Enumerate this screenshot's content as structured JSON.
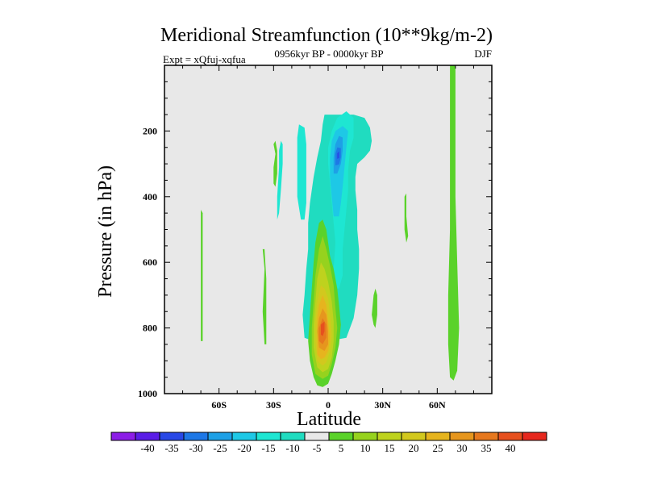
{
  "chart_data": {
    "type": "heatmap",
    "title": "Meridional Streamfunction (10**9kg/m-2)",
    "experiment": "Expt = xQfuj-xqfua",
    "subtitle": "0956kyr BP - 0000kyr BP",
    "season": "DJF",
    "xlabel": "Latitude",
    "ylabel": "Pressure (in hPa)",
    "xlim": [
      -90,
      90
    ],
    "ylim": [
      0,
      1000
    ],
    "x_ticks": [
      {
        "value": -60,
        "label": "60S"
      },
      {
        "value": -30,
        "label": "30S"
      },
      {
        "value": 0,
        "label": "0"
      },
      {
        "value": 30,
        "label": "30N"
      },
      {
        "value": 60,
        "label": "60N"
      }
    ],
    "y_ticks": [
      {
        "value": 200,
        "label": "200"
      },
      {
        "value": 400,
        "label": "400"
      },
      {
        "value": 600,
        "label": "600"
      },
      {
        "value": 800,
        "label": "800"
      },
      {
        "value": 1000,
        "label": "1000"
      }
    ],
    "background_color": "#e8e8e8",
    "colorbar": {
      "colors": [
        "#8c1ee6",
        "#5a1ee6",
        "#2848e6",
        "#1e78e6",
        "#1ea0e6",
        "#1ec8e6",
        "#1ee6d2",
        "#20dcc0",
        "#e8e8e8",
        "#5ad22a",
        "#96d21e",
        "#bed21e",
        "#d2c81e",
        "#e6b41e",
        "#e6961e",
        "#e6781e",
        "#e6501e",
        "#e6281e"
      ],
      "labels": [
        "-40",
        "-35",
        "-30",
        "-25",
        "-20",
        "-15",
        "-10",
        "-5",
        "5",
        "10",
        "15",
        "20",
        "25",
        "30",
        "35",
        "40"
      ]
    },
    "regions": [
      {
        "value": -5,
        "color": "#20dcc0",
        "points": [
          [
            -13,
            830
          ],
          [
            -14,
            760
          ],
          [
            -13,
            700
          ],
          [
            -12,
            620
          ],
          [
            -11,
            560
          ],
          [
            -11,
            480
          ],
          [
            -10,
            420
          ],
          [
            -8,
            340
          ],
          [
            -6,
            280
          ],
          [
            -4,
            230
          ],
          [
            -3,
            180
          ],
          [
            -2,
            150
          ],
          [
            2,
            150
          ],
          [
            8,
            150
          ],
          [
            14,
            150
          ],
          [
            20,
            160
          ],
          [
            23,
            190
          ],
          [
            24,
            230
          ],
          [
            23,
            260
          ],
          [
            20,
            280
          ],
          [
            16,
            300
          ],
          [
            15,
            340
          ],
          [
            15,
            380
          ],
          [
            16,
            440
          ],
          [
            16,
            500
          ],
          [
            17,
            560
          ],
          [
            17,
            620
          ],
          [
            16,
            700
          ],
          [
            14,
            770
          ],
          [
            10,
            830
          ],
          [
            0,
            840
          ],
          [
            -8,
            840
          ]
        ]
      },
      {
        "value": -10,
        "color": "#1ee6d2",
        "points": [
          [
            2,
            680
          ],
          [
            3,
            620
          ],
          [
            4,
            540
          ],
          [
            3,
            480
          ],
          [
            2,
            420
          ],
          [
            1,
            360
          ],
          [
            0,
            300
          ],
          [
            0,
            250
          ],
          [
            2,
            200
          ],
          [
            5,
            160
          ],
          [
            10,
            140
          ],
          [
            14,
            160
          ],
          [
            14,
            220
          ],
          [
            12,
            260
          ],
          [
            11,
            320
          ],
          [
            11,
            380
          ],
          [
            10,
            440
          ],
          [
            9,
            500
          ],
          [
            8,
            560
          ],
          [
            8,
            640
          ],
          [
            6,
            680
          ]
        ]
      },
      {
        "value": -15,
        "color": "#1ec8e6",
        "points": [
          [
            3,
            460
          ],
          [
            2,
            400
          ],
          [
            1,
            340
          ],
          [
            1,
            280
          ],
          [
            2,
            230
          ],
          [
            4,
            200
          ],
          [
            8,
            185
          ],
          [
            11,
            200
          ],
          [
            10,
            250
          ],
          [
            9,
            310
          ],
          [
            8,
            370
          ],
          [
            7,
            420
          ],
          [
            6,
            460
          ]
        ]
      },
      {
        "value": -20,
        "color": "#1ea0e6",
        "points": [
          [
            3,
            330
          ],
          [
            3,
            280
          ],
          [
            4,
            240
          ],
          [
            6,
            215
          ],
          [
            8,
            220
          ],
          [
            8,
            260
          ],
          [
            7,
            300
          ],
          [
            5,
            330
          ]
        ]
      },
      {
        "value": -25,
        "color": "#1e78e6",
        "points": [
          [
            4,
            305
          ],
          [
            4,
            270
          ],
          [
            5,
            250
          ],
          [
            7,
            252
          ],
          [
            7,
            280
          ],
          [
            6,
            302
          ]
        ]
      },
      {
        "value": -30,
        "color": "#2848e6",
        "points": [
          [
            5,
            285
          ],
          [
            5,
            268
          ],
          [
            6,
            262
          ],
          [
            6,
            282
          ]
        ]
      },
      {
        "value": -5,
        "color": "#1ee6d2",
        "points": [
          [
            -17,
            220
          ],
          [
            -16,
            180
          ],
          [
            -13,
            190
          ],
          [
            -12,
            240
          ],
          [
            -12,
            320
          ],
          [
            -12,
            420
          ],
          [
            -13,
            470
          ],
          [
            -15,
            470
          ],
          [
            -17,
            400
          ],
          [
            -17,
            300
          ]
        ]
      },
      {
        "value": -5,
        "color": "#1ee6d2",
        "points": [
          [
            -27,
            310
          ],
          [
            -27,
            260
          ],
          [
            -26,
            230
          ],
          [
            -25,
            240
          ],
          [
            -25,
            300
          ],
          [
            -26,
            380
          ],
          [
            -27,
            450
          ],
          [
            -28,
            470
          ],
          [
            -28,
            400
          ]
        ]
      },
      {
        "value": 5,
        "color": "#5ad22a",
        "points": [
          [
            -8,
            950
          ],
          [
            -10,
            900
          ],
          [
            -11,
            840
          ],
          [
            -10,
            760
          ],
          [
            -9,
            680
          ],
          [
            -8,
            600
          ],
          [
            -7,
            540
          ],
          [
            -5,
            480
          ],
          [
            -3,
            470
          ],
          [
            -1,
            500
          ],
          [
            0,
            540
          ],
          [
            1,
            580
          ],
          [
            3,
            620
          ],
          [
            5,
            680
          ],
          [
            6,
            730
          ],
          [
            7,
            790
          ],
          [
            6,
            850
          ],
          [
            4,
            900
          ],
          [
            2,
            940
          ],
          [
            0,
            970
          ],
          [
            -3,
            980
          ],
          [
            -6,
            975
          ]
        ]
      },
      {
        "value": 10,
        "color": "#96d21e",
        "points": [
          [
            -7,
            940
          ],
          [
            -9,
            880
          ],
          [
            -9,
            800
          ],
          [
            -8,
            720
          ],
          [
            -7,
            640
          ],
          [
            -5,
            560
          ],
          [
            -3,
            520
          ],
          [
            -1,
            560
          ],
          [
            1,
            610
          ],
          [
            3,
            670
          ],
          [
            4,
            740
          ],
          [
            5,
            800
          ],
          [
            4,
            860
          ],
          [
            2,
            910
          ],
          [
            0,
            945
          ],
          [
            -3,
            955
          ]
        ]
      },
      {
        "value": 15,
        "color": "#bed21e",
        "points": [
          [
            -6,
            920
          ],
          [
            -8,
            860
          ],
          [
            -8,
            790
          ],
          [
            -7,
            720
          ],
          [
            -6,
            650
          ],
          [
            -4,
            600
          ],
          [
            -2,
            620
          ],
          [
            0,
            660
          ],
          [
            2,
            720
          ],
          [
            3,
            780
          ],
          [
            3,
            840
          ],
          [
            2,
            890
          ],
          [
            0,
            925
          ],
          [
            -3,
            935
          ]
        ]
      },
      {
        "value": 20,
        "color": "#d2c81e",
        "points": [
          [
            -6,
            900
          ],
          [
            -7,
            840
          ],
          [
            -7,
            780
          ],
          [
            -6,
            720
          ],
          [
            -4,
            670
          ],
          [
            -2,
            680
          ],
          [
            0,
            710
          ],
          [
            1,
            760
          ],
          [
            2,
            820
          ],
          [
            1,
            870
          ],
          [
            -1,
            905
          ],
          [
            -3,
            915
          ]
        ]
      },
      {
        "value": 25,
        "color": "#e6b41e",
        "points": [
          [
            -6,
            880
          ],
          [
            -6,
            820
          ],
          [
            -6,
            770
          ],
          [
            -5,
            730
          ],
          [
            -3,
            700
          ],
          [
            -1,
            730
          ],
          [
            0,
            780
          ],
          [
            1,
            830
          ],
          [
            0,
            870
          ],
          [
            -2,
            890
          ],
          [
            -4,
            895
          ]
        ]
      },
      {
        "value": 30,
        "color": "#e6961e",
        "points": [
          [
            -5,
            860
          ],
          [
            -6,
            810
          ],
          [
            -5,
            770
          ],
          [
            -3,
            740
          ],
          [
            -1,
            760
          ],
          [
            0,
            810
          ],
          [
            0,
            850
          ],
          [
            -2,
            870
          ]
        ]
      },
      {
        "value": 35,
        "color": "#e6781e",
        "points": [
          [
            -5,
            840
          ],
          [
            -5,
            800
          ],
          [
            -3,
            770
          ],
          [
            -1,
            790
          ],
          [
            -1,
            830
          ],
          [
            -3,
            850
          ]
        ]
      },
      {
        "value": 40,
        "color": "#e6501e",
        "points": [
          [
            -4,
            820
          ],
          [
            -4,
            790
          ],
          [
            -2,
            780
          ],
          [
            -2,
            810
          ],
          [
            -3,
            825
          ]
        ]
      },
      {
        "value": 5,
        "color": "#5ad22a",
        "points": [
          [
            -29,
            270
          ],
          [
            -30,
            240
          ],
          [
            -29,
            230
          ],
          [
            -28,
            260
          ],
          [
            -28,
            330
          ],
          [
            -29,
            370
          ],
          [
            -30,
            360
          ],
          [
            -30,
            310
          ]
        ]
      },
      {
        "value": 5,
        "color": "#5ad22a",
        "points": [
          [
            -70,
            490
          ],
          [
            -70,
            440
          ],
          [
            -69,
            450
          ],
          [
            -69,
            550
          ],
          [
            -69,
            680
          ],
          [
            -69,
            790
          ],
          [
            -69,
            840
          ],
          [
            -70,
            840
          ],
          [
            -70,
            700
          ]
        ]
      },
      {
        "value": 5,
        "color": "#5ad22a",
        "points": [
          [
            -35,
            620
          ],
          [
            -36,
            560
          ],
          [
            -35,
            560
          ],
          [
            -34,
            650
          ],
          [
            -34,
            760
          ],
          [
            -34,
            850
          ],
          [
            -35,
            850
          ],
          [
            -36,
            750
          ]
        ]
      },
      {
        "value": 5,
        "color": "#5ad22a",
        "points": [
          [
            25,
            700
          ],
          [
            26,
            680
          ],
          [
            27,
            700
          ],
          [
            27,
            760
          ],
          [
            26,
            800
          ],
          [
            25,
            790
          ],
          [
            24,
            760
          ]
        ]
      },
      {
        "value": 5,
        "color": "#5ad22a",
        "points": [
          [
            42,
            400
          ],
          [
            43,
            390
          ],
          [
            43,
            460
          ],
          [
            44,
            520
          ],
          [
            43,
            540
          ],
          [
            42,
            500
          ],
          [
            42,
            450
          ]
        ]
      },
      {
        "value": 5,
        "color": "#5ad22a",
        "points": [
          [
            67,
            0
          ],
          [
            70,
            0
          ],
          [
            70,
            200
          ],
          [
            70,
            400
          ],
          [
            71,
            600
          ],
          [
            72,
            800
          ],
          [
            71,
            930
          ],
          [
            69,
            960
          ],
          [
            67,
            950
          ],
          [
            66,
            850
          ],
          [
            66,
            700
          ],
          [
            67,
            500
          ],
          [
            67,
            300
          ],
          [
            67,
            100
          ]
        ]
      }
    ]
  }
}
